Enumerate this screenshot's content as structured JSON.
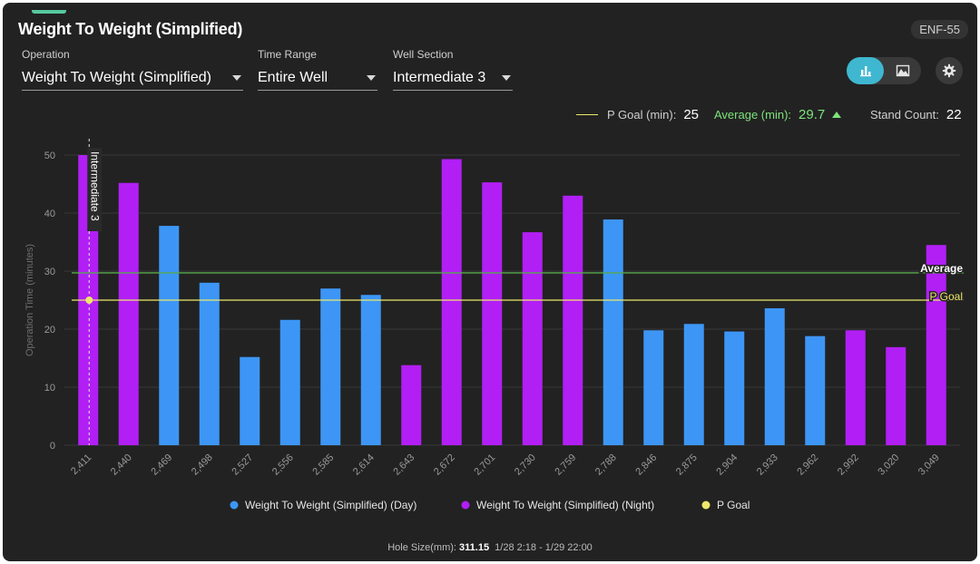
{
  "header": {
    "title": "Weight To Weight (Simplified)",
    "badge": "ENF-55"
  },
  "filters": [
    {
      "label": "Operation",
      "value": "Weight To Weight (Simplified)"
    },
    {
      "label": "Time Range",
      "value": "Entire Well"
    },
    {
      "label": "Well Section",
      "value": "Intermediate 3"
    }
  ],
  "view_toggle": {
    "active": "bar-chart"
  },
  "stats": {
    "pgoal_label": "P Goal (min):",
    "pgoal_value": "25",
    "average_label": "Average (min):",
    "average_value": "29.7",
    "stand_label": "Stand Count:",
    "stand_value": "22"
  },
  "colors": {
    "day": "#3d96f5",
    "night": "#b11ff5",
    "pgoal": "#ede86b",
    "average": "#56a84c",
    "avg_text": "#7de37a"
  },
  "chart_data": {
    "type": "bar",
    "ylabel": "Operation Time (minutes)",
    "ylim": [
      0,
      50
    ],
    "yticks": [
      "0",
      "10",
      "20",
      "30",
      "40",
      "50"
    ],
    "categories": [
      "2,411",
      "2,440",
      "2,469",
      "2,498",
      "2,527",
      "2,556",
      "2,585",
      "2,614",
      "2,643",
      "2,672",
      "2,701",
      "2,730",
      "2,759",
      "2,788",
      "2,846",
      "2,875",
      "2,904",
      "2,933",
      "2,962",
      "2,992",
      "3,020",
      "3,049"
    ],
    "values": [
      50,
      45.2,
      37.8,
      28,
      15.2,
      21.6,
      27,
      25.9,
      13.8,
      49.3,
      45.3,
      36.7,
      43,
      38.9,
      19.8,
      20.9,
      19.6,
      23.6,
      18.8,
      19.8,
      16.9,
      34.5
    ],
    "shift": [
      "night",
      "night",
      "day",
      "day",
      "day",
      "day",
      "day",
      "day",
      "night",
      "night",
      "night",
      "night",
      "night",
      "day",
      "day",
      "day",
      "day",
      "day",
      "day",
      "night",
      "night",
      "night"
    ],
    "series": [
      {
        "name": "Weight To Weight (Simplified) (Day)",
        "key": "day"
      },
      {
        "name": "Weight To Weight (Simplified) (Night)",
        "key": "night"
      },
      {
        "name": "P Goal",
        "key": "pgoal"
      }
    ],
    "average": 29.7,
    "average_label": "Average",
    "pgoal": 25,
    "pgoal_label": "P Goal",
    "section_marker": {
      "category": "2,411",
      "label": "Intermediate 3"
    }
  },
  "footer": {
    "hole_size_label": "Hole Size(mm):",
    "hole_size_value": "311.15",
    "range": "1/28 2:18 - 1/29 22:00"
  }
}
